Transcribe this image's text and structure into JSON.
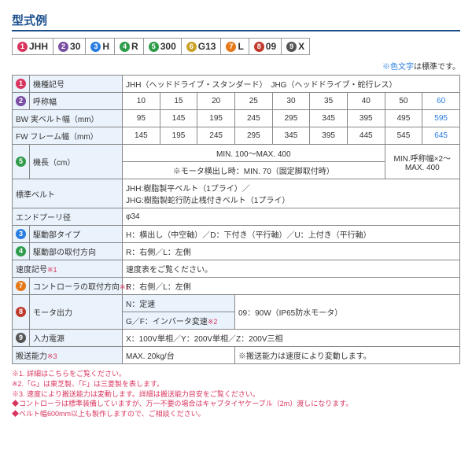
{
  "title": "型式例",
  "legend": [
    {
      "num": "1",
      "color": "#d9365f",
      "txt": "JHH"
    },
    {
      "num": "2",
      "color": "#7a4fa3",
      "txt": "30"
    },
    {
      "num": "3",
      "color": "#2a7de1",
      "txt": "H"
    },
    {
      "num": "4",
      "color": "#2f9c4a",
      "txt": "R"
    },
    {
      "num": "5",
      "color": "#2f9c4a",
      "txt": "300"
    },
    {
      "num": "6",
      "color": "#c9a227",
      "txt": "G13"
    },
    {
      "num": "7",
      "color": "#e67817",
      "txt": "L"
    },
    {
      "num": "8",
      "color": "#c0392b",
      "txt": "09"
    },
    {
      "num": "9",
      "color": "#555555",
      "txt": "X"
    }
  ],
  "note_blue": "※色文字",
  "note_tail": "は標準です。",
  "rows": {
    "r1": {
      "badge": {
        "n": "1",
        "c": "#d9365f"
      },
      "label": "機種記号",
      "val": "JHH（ヘッドドライブ・スタンダード）　JHG（ヘッドドライブ・蛇行レス）"
    },
    "r2": {
      "badge": {
        "n": "2",
        "c": "#7a4fa3"
      },
      "label": "呼称幅",
      "cells": [
        "10",
        "15",
        "20",
        "25",
        "30",
        "35",
        "40",
        "50",
        "60"
      ]
    },
    "r3": {
      "label": "BW 実ベルト幅（mm）",
      "cells": [
        "95",
        "145",
        "195",
        "245",
        "295",
        "345",
        "395",
        "495",
        "595"
      ]
    },
    "r4": {
      "label": "FW フレーム幅（mm）",
      "cells": [
        "145",
        "195",
        "245",
        "295",
        "345",
        "395",
        "445",
        "545",
        "645"
      ]
    },
    "r5": {
      "badge": {
        "n": "5",
        "c": "#2f9c4a"
      },
      "label": "機長（cm）",
      "v1": "MIN. 100～MAX. 400",
      "v2": "※モータ横出し時：MIN. 70（固定脚取付時）",
      "v3": "MIN.呼称幅×2～MAX. 400"
    },
    "r6": {
      "label": "標準ベルト",
      "val": "JHH:樹脂製平ベルト（1プライ）／\nJHG:樹脂製蛇行防止桟付きベルト（1プライ）"
    },
    "r7": {
      "label": "エンドプーリ径",
      "val": "φ34"
    },
    "r8": {
      "badge": {
        "n": "3",
        "c": "#2a7de1"
      },
      "label": "駆動部タイプ",
      "val": "H：横出し（中空軸）／D：下付き（平行軸）／U：上付き（平行軸）"
    },
    "r9": {
      "badge": {
        "n": "4",
        "c": "#2f9c4a"
      },
      "label": "駆動部の取付方向",
      "val": "R：右側／L：左側"
    },
    "r10": {
      "label": "速度記号",
      "mark": "※1",
      "val": "速度表をご覧ください。"
    },
    "r11": {
      "badge": {
        "n": "7",
        "c": "#e67817"
      },
      "label": "コントローラの取付方向",
      "mark": "※1",
      "val": "R：右側／L：左側"
    },
    "r12a": {
      "badge": {
        "n": "8",
        "c": "#c0392b"
      },
      "label": "モータ出力",
      "sub1": "N：定速",
      "sub2": "G／F：インバータ変速",
      "mark": "※2",
      "val": "09：90W（IP65防水モータ）"
    },
    "r13": {
      "badge": {
        "n": "9",
        "c": "#555555"
      },
      "label": "入力電源",
      "val": "X：100V単相／Y：200V単相／Z：200V三相"
    },
    "r14": {
      "label": "搬送能力",
      "mark": "※3",
      "v1": "MAX. 20kg/台",
      "v2": "※搬送能力は速度により変動します。"
    }
  },
  "footnotes": [
    "※1. 詳細はこちらをご覧ください。",
    "※2.「G」は東芝製、「F」は三菱製を表します。",
    "※3. 速度により搬送能力は変動します。詳細は搬送能力目安をご覧ください。",
    "◆コントローラは標準装備していますが、万一不要の場合はキャブタイヤケーブル（2m）渡しになります。",
    "◆ベルト幅600mm以上も製作しますので、ご相談ください。"
  ]
}
